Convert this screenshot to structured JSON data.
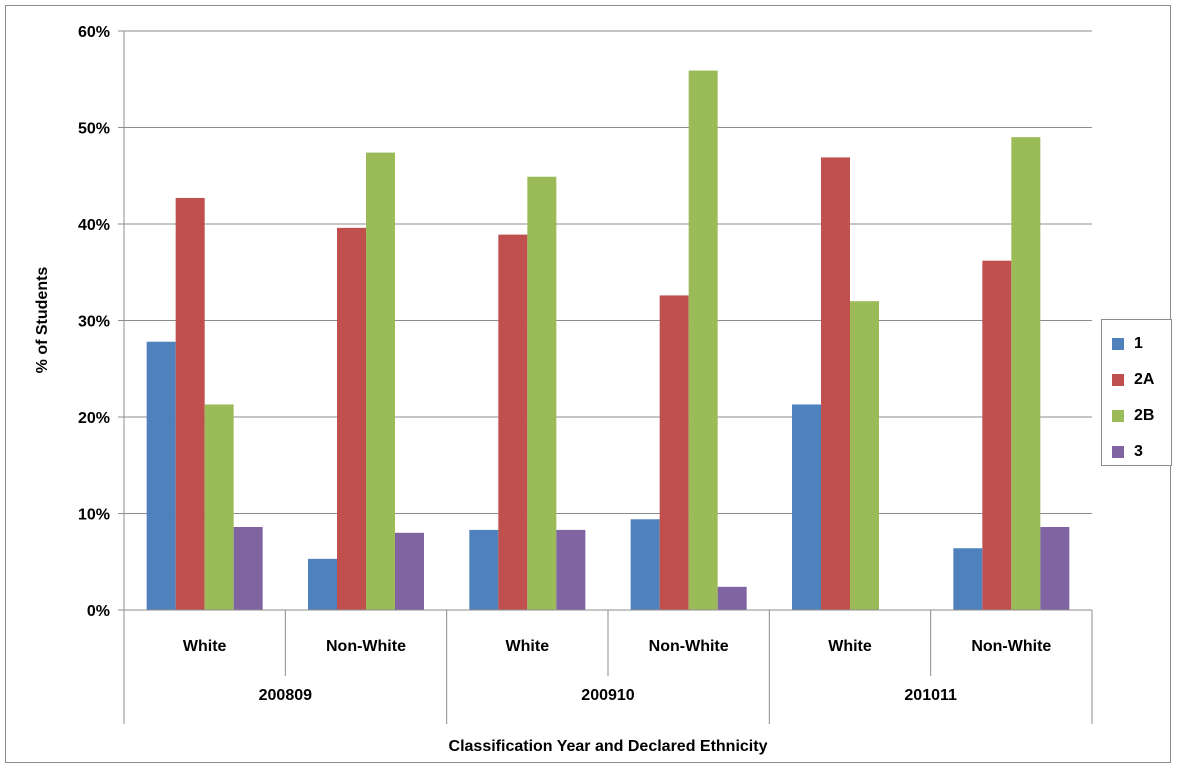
{
  "chart_data": {
    "type": "bar",
    "title": "",
    "ylabel": "% of Students",
    "xlabel": "Classification Year and Declared Ethnicity",
    "ylim": [
      0,
      60
    ],
    "yticks": [
      "0%",
      "10%",
      "20%",
      "30%",
      "40%",
      "50%",
      "60%"
    ],
    "grid": true,
    "legend_position": "right",
    "categories": [
      "White",
      "Non-White",
      "White",
      "Non-White",
      "White",
      "Non-White"
    ],
    "groups": [
      {
        "label": "200809",
        "span": 2
      },
      {
        "label": "200910",
        "span": 2
      },
      {
        "label": "201011",
        "span": 2
      }
    ],
    "series": [
      {
        "name": "1",
        "color": "#4f81bd",
        "values": [
          27.8,
          5.3,
          8.3,
          9.4,
          21.3,
          6.4
        ]
      },
      {
        "name": "2A",
        "color": "#c0504d",
        "values": [
          42.7,
          39.6,
          38.9,
          32.6,
          46.9,
          36.2
        ]
      },
      {
        "name": "2B",
        "color": "#9bbb59",
        "values": [
          21.3,
          47.4,
          44.9,
          55.9,
          32.0,
          49.0
        ]
      },
      {
        "name": "3",
        "color": "#8064a2",
        "values": [
          8.6,
          8.0,
          8.3,
          2.4,
          0,
          8.6
        ]
      }
    ]
  }
}
